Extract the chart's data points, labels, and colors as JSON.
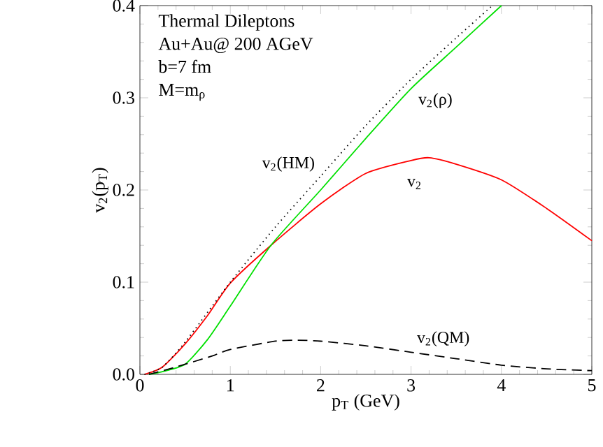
{
  "chart_data": {
    "type": "line",
    "xlabel": "p$_{T}$ (GeV)",
    "ylabel": "v$_{2}$(p$_{T}$)",
    "xlim": [
      0,
      5
    ],
    "ylim": [
      0,
      0.4
    ],
    "xticks": [
      0,
      1,
      2,
      3,
      4,
      5
    ],
    "yticks": [
      {
        "value": 0,
        "label": "0.0"
      },
      {
        "value": 0.1,
        "label": "0.1"
      },
      {
        "value": 0.2,
        "label": "0.2"
      },
      {
        "value": 0.3,
        "label": "0.3"
      },
      {
        "value": 0.4,
        "label": "0.4"
      }
    ],
    "grid": false,
    "marker": "none",
    "series": [
      {
        "name": "v$_{2}$",
        "color": "#ff0000",
        "line_style": "solid",
        "x": [
          0.05,
          0.25,
          0.5,
          0.75,
          1,
          1.45,
          2,
          2.5,
          3,
          3.2,
          3.5,
          4,
          4.5,
          5
        ],
        "values": [
          0,
          0.008,
          0.033,
          0.064,
          0.099,
          0.14,
          0.185,
          0.218,
          0.232,
          0.235,
          0.228,
          0.211,
          0.18,
          0.145
        ]
      },
      {
        "name": "v$_{2}$(ρ)",
        "color": "#00e000",
        "line_style": "solid",
        "x": [
          0.1,
          0.25,
          0.5,
          0.75,
          1,
          1.45,
          2,
          2.5,
          3,
          3.5,
          4
        ],
        "values": [
          0,
          0.003,
          0.011,
          0.038,
          0.074,
          0.14,
          0.2,
          0.256,
          0.31,
          0.355,
          0.4
        ]
      },
      {
        "name": "v$_{2}$(HM)",
        "color": "#000000",
        "line_style": "dotted",
        "x": [
          0.05,
          0.25,
          0.5,
          1,
          1.5,
          2,
          2.5,
          3,
          3.5,
          3.9
        ],
        "values": [
          0,
          0.008,
          0.035,
          0.1,
          0.16,
          0.215,
          0.27,
          0.32,
          0.365,
          0.4
        ]
      },
      {
        "name": "v$_{2}$(QM)",
        "color": "#000000",
        "line_style": "dashed",
        "x": [
          0.1,
          0.4,
          0.8,
          1,
          1.5,
          1.75,
          2,
          2.5,
          3,
          3.5,
          4,
          4.5,
          5
        ],
        "values": [
          0,
          0.008,
          0.02,
          0.027,
          0.036,
          0.037,
          0.036,
          0.031,
          0.024,
          0.017,
          0.01,
          0.006,
          0.004
        ]
      }
    ],
    "annotations": [
      "Thermal Dileptons",
      "Au+Au@ 200 AGeV",
      "b=7 fm",
      "M=m$_{ρ}$"
    ]
  }
}
